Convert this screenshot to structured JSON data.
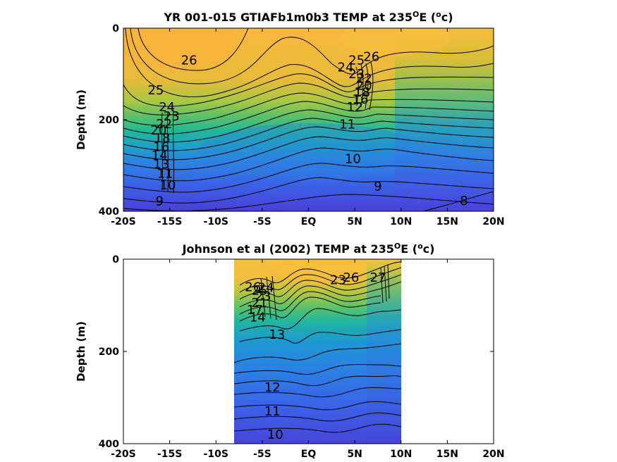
{
  "chart_data": [
    {
      "type": "heatmap",
      "title_main": "YR 001-015 GTIAFb1m0b3 TEMP at 235",
      "title_sup": "O",
      "title_tail": "E (",
      "title_sup2": "o",
      "title_end": "c)",
      "ylabel": "Depth (m)",
      "xlim": [
        -20,
        20
      ],
      "ylim": [
        0,
        400
      ],
      "x_ticks": [
        -20,
        -15,
        -10,
        -5,
        0,
        5,
        10,
        15,
        20
      ],
      "x_tick_labels": [
        "-20S",
        "-15S",
        "-10S",
        "-5S",
        "EQ",
        "5N",
        "10N",
        "15N",
        "20N"
      ],
      "y_ticks": [
        0,
        200,
        400
      ],
      "y_tick_labels": [
        "0",
        "200",
        "400"
      ],
      "data_x_range": [
        -20,
        20
      ],
      "contour_labels": [
        {
          "text": "26",
          "x": -12.9,
          "y": 70
        },
        {
          "text": "25",
          "x": -16.5,
          "y": 135
        },
        {
          "text": "24",
          "x": -15.3,
          "y": 172
        },
        {
          "text": "23",
          "x": -14.8,
          "y": 192
        },
        {
          "text": "22",
          "x": -15.6,
          "y": 209
        },
        {
          "text": "20",
          "x": -16.2,
          "y": 223
        },
        {
          "text": "18",
          "x": -15.8,
          "y": 240
        },
        {
          "text": "16",
          "x": -15.9,
          "y": 259
        },
        {
          "text": "14",
          "x": -16.1,
          "y": 278
        },
        {
          "text": "13",
          "x": -15.9,
          "y": 297
        },
        {
          "text": "11",
          "x": -15.5,
          "y": 318
        },
        {
          "text": "10",
          "x": -15.2,
          "y": 343
        },
        {
          "text": "9",
          "x": -16.1,
          "y": 378
        },
        {
          "text": "26",
          "x": 6.8,
          "y": 62
        },
        {
          "text": "25",
          "x": 5.2,
          "y": 70
        },
        {
          "text": "24",
          "x": 4.0,
          "y": 85
        },
        {
          "text": "23",
          "x": 5.2,
          "y": 100
        },
        {
          "text": "22",
          "x": 6.0,
          "y": 110
        },
        {
          "text": "20",
          "x": 6.0,
          "y": 125
        },
        {
          "text": "18",
          "x": 5.8,
          "y": 140
        },
        {
          "text": "16",
          "x": 5.6,
          "y": 155
        },
        {
          "text": "12",
          "x": 5.0,
          "y": 172
        },
        {
          "text": "11",
          "x": 4.2,
          "y": 210
        },
        {
          "text": "10",
          "x": 4.8,
          "y": 285
        },
        {
          "text": "9",
          "x": 7.5,
          "y": 345
        },
        {
          "text": "8",
          "x": 16.8,
          "y": 377
        }
      ]
    },
    {
      "type": "heatmap",
      "title_main": "Johnson et al (2002) TEMP at 235",
      "title_sup": "O",
      "title_tail": "E (",
      "title_sup2": "o",
      "title_end": "c)",
      "ylabel": "Depth (m)",
      "xlim": [
        -20,
        20
      ],
      "ylim": [
        0,
        400
      ],
      "x_ticks": [
        -20,
        -15,
        -10,
        -5,
        0,
        5,
        10,
        15,
        20
      ],
      "x_tick_labels": [
        "-20S",
        "-15S",
        "-10S",
        "-5S",
        "EQ",
        "5N",
        "10N",
        "15N",
        "20N"
      ],
      "y_ticks": [
        0,
        200,
        400
      ],
      "y_tick_labels": [
        "0",
        "200",
        "400"
      ],
      "data_x_range": [
        -8,
        10
      ],
      "contour_labels": [
        {
          "text": "26",
          "x": -6.0,
          "y": 60
        },
        {
          "text": "25",
          "x": -5.3,
          "y": 68
        },
        {
          "text": "24",
          "x": -4.6,
          "y": 62
        },
        {
          "text": "23",
          "x": -4.9,
          "y": 80
        },
        {
          "text": "21",
          "x": -5.3,
          "y": 95
        },
        {
          "text": "17",
          "x": -5.8,
          "y": 110
        },
        {
          "text": "14",
          "x": -5.5,
          "y": 126
        },
        {
          "text": "13",
          "x": -3.4,
          "y": 163
        },
        {
          "text": "23",
          "x": 3.2,
          "y": 45
        },
        {
          "text": "26",
          "x": 4.6,
          "y": 40
        },
        {
          "text": "27",
          "x": 7.5,
          "y": 40
        },
        {
          "text": "12",
          "x": -3.9,
          "y": 278
        },
        {
          "text": "11",
          "x": -3.9,
          "y": 330
        },
        {
          "text": "10",
          "x": -3.6,
          "y": 380
        }
      ]
    }
  ]
}
